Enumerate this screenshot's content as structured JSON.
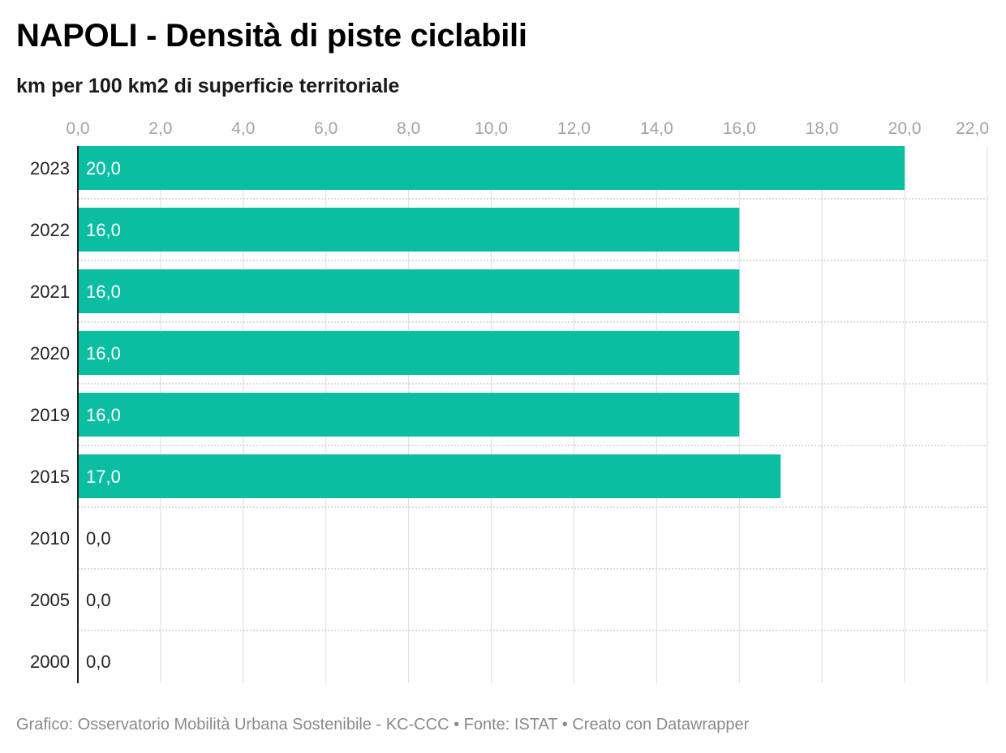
{
  "title": "NAPOLI - Densità di piste ciclabili",
  "subtitle": "km per 100 km2 di superficie territoriale",
  "footer": "Grafico: Osservatorio Mobilità Urbana Sostenibile - KC-CCC • Fonte: ISTAT • Creato con Datawrapper",
  "chart_data": {
    "type": "bar",
    "orientation": "horizontal",
    "title": "NAPOLI - Densità di piste ciclabili",
    "subtitle": "km per 100 km2 di superficie territoriale",
    "categories": [
      "2023",
      "2022",
      "2021",
      "2020",
      "2019",
      "2015",
      "2010",
      "2005",
      "2000"
    ],
    "values": [
      20.0,
      16.0,
      16.0,
      16.0,
      16.0,
      17.0,
      0.0,
      0.0,
      0.0
    ],
    "value_labels": [
      "20,0",
      "16,0",
      "16,0",
      "16,0",
      "16,0",
      "17,0",
      "0,0",
      "0,0",
      "0,0"
    ],
    "ticks": [
      0,
      2,
      4,
      6,
      8,
      10,
      12,
      14,
      16,
      18,
      20,
      22
    ],
    "tick_labels": [
      "0,0",
      "2,0",
      "4,0",
      "6,0",
      "8,0",
      "10,0",
      "12,0",
      "14,0",
      "16,0",
      "18,0",
      "20,0",
      "22,0"
    ],
    "xlim": [
      0,
      22
    ],
    "grid": true,
    "axis_position": "top",
    "bar_color": "#0bbea2",
    "grid_color": "#e2e2e2"
  }
}
